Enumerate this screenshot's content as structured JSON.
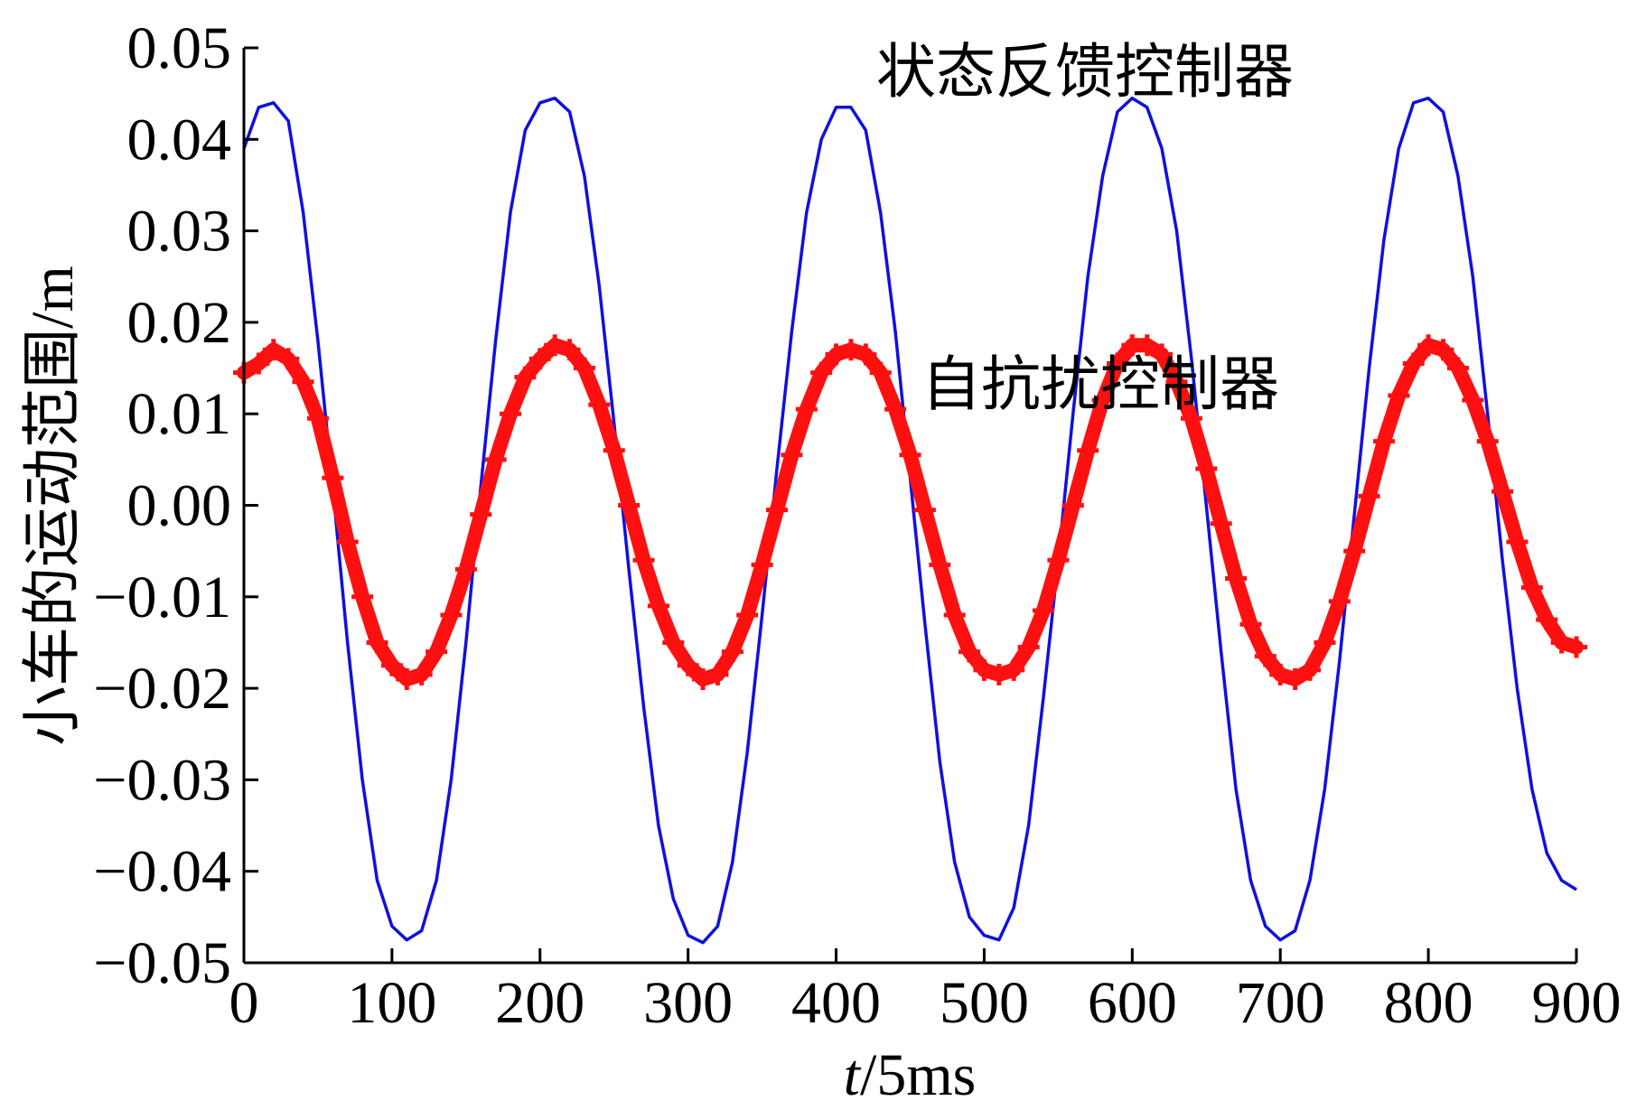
{
  "chart_data": {
    "type": "line",
    "title": "",
    "xlabel": {
      "italic": "t",
      "rest": "/5ms"
    },
    "ylabel": "小车的运动范围/m",
    "xlim": [
      0,
      900
    ],
    "ylim": [
      -0.05,
      0.05
    ],
    "x_ticks": [
      "0",
      "100",
      "200",
      "300",
      "400",
      "500",
      "600",
      "700",
      "800",
      "900"
    ],
    "y_ticks": [
      "0.05",
      "0.04",
      "0.03",
      "0.02",
      "0.01",
      "0.00",
      "−0.01",
      "−0.02",
      "−0.03",
      "−0.04",
      "−0.05"
    ],
    "grid": false,
    "legend": "none",
    "series": [
      {
        "name": "状态反馈控制器",
        "color": "#1010e0",
        "style": "line",
        "x": [
          0,
          10,
          20,
          30,
          40,
          50,
          60,
          70,
          80,
          90,
          100,
          110,
          120,
          130,
          140,
          150,
          160,
          170,
          180,
          190,
          200,
          210,
          220,
          230,
          240,
          250,
          260,
          270,
          280,
          290,
          300,
          310,
          320,
          330,
          340,
          350,
          360,
          370,
          380,
          390,
          400,
          410,
          420,
          430,
          440,
          450,
          460,
          470,
          480,
          490,
          500,
          510,
          520,
          530,
          540,
          550,
          560,
          570,
          580,
          590,
          600,
          610,
          620,
          630,
          640,
          650,
          660,
          670,
          680,
          690,
          700,
          710,
          720,
          730,
          740,
          750,
          760,
          770,
          780,
          790,
          800,
          810,
          820,
          830,
          840,
          850,
          860,
          870,
          880,
          890,
          900
        ],
        "y": [
          0.039,
          0.0435,
          0.044,
          0.042,
          0.032,
          0.018,
          0.002,
          -0.015,
          -0.03,
          -0.041,
          -0.046,
          -0.0475,
          -0.0465,
          -0.041,
          -0.03,
          -0.015,
          0.002,
          0.018,
          0.032,
          0.041,
          0.044,
          0.0445,
          0.043,
          0.036,
          0.024,
          0.009,
          -0.007,
          -0.022,
          -0.035,
          -0.043,
          -0.047,
          -0.0478,
          -0.046,
          -0.039,
          -0.027,
          -0.012,
          0.004,
          0.019,
          0.032,
          0.04,
          0.0435,
          0.0435,
          0.041,
          0.032,
          0.019,
          0.003,
          -0.013,
          -0.028,
          -0.039,
          -0.045,
          -0.047,
          -0.0475,
          -0.044,
          -0.035,
          -0.021,
          -0.006,
          0.01,
          0.025,
          0.036,
          0.043,
          0.0445,
          0.0435,
          0.039,
          0.03,
          0.016,
          0.0,
          -0.016,
          -0.031,
          -0.041,
          -0.046,
          -0.0475,
          -0.0465,
          -0.041,
          -0.031,
          -0.017,
          -0.001,
          0.015,
          0.029,
          0.039,
          0.044,
          0.0445,
          0.043,
          0.036,
          0.025,
          0.01,
          -0.006,
          -0.02,
          -0.031,
          -0.038,
          -0.041,
          -0.042
        ]
      },
      {
        "name": "自抗扰控制器",
        "color": "#ff1010",
        "style": "dense-markers",
        "x": [
          0,
          10,
          20,
          30,
          40,
          50,
          60,
          70,
          80,
          90,
          100,
          110,
          120,
          130,
          140,
          150,
          160,
          170,
          180,
          190,
          200,
          210,
          220,
          230,
          240,
          250,
          260,
          270,
          280,
          290,
          300,
          310,
          320,
          330,
          340,
          350,
          360,
          370,
          380,
          390,
          400,
          410,
          420,
          430,
          440,
          450,
          460,
          470,
          480,
          490,
          500,
          510,
          520,
          530,
          540,
          550,
          560,
          570,
          580,
          590,
          600,
          610,
          620,
          630,
          640,
          650,
          660,
          670,
          680,
          690,
          700,
          710,
          720,
          730,
          740,
          750,
          760,
          770,
          780,
          790,
          800,
          810,
          820,
          830,
          840,
          850,
          860,
          870,
          880,
          890,
          900
        ],
        "y": [
          0.0145,
          0.0155,
          0.017,
          0.016,
          0.0135,
          0.0095,
          0.003,
          -0.004,
          -0.01,
          -0.015,
          -0.0175,
          -0.019,
          -0.0185,
          -0.016,
          -0.012,
          -0.007,
          -0.001,
          0.005,
          0.01,
          0.014,
          0.016,
          0.0175,
          0.017,
          0.015,
          0.011,
          0.006,
          0.0,
          -0.006,
          -0.011,
          -0.015,
          -0.0175,
          -0.019,
          -0.0185,
          -0.016,
          -0.012,
          -0.0065,
          -0.0005,
          0.0055,
          0.0105,
          0.0145,
          0.0165,
          0.017,
          0.0165,
          0.0145,
          0.0105,
          0.0055,
          -0.0005,
          -0.0065,
          -0.012,
          -0.016,
          -0.018,
          -0.0185,
          -0.018,
          -0.0155,
          -0.0115,
          -0.006,
          0.0,
          0.006,
          0.0115,
          0.0155,
          0.0175,
          0.0175,
          0.0165,
          0.0135,
          0.0095,
          0.004,
          -0.002,
          -0.008,
          -0.013,
          -0.0165,
          -0.0185,
          -0.019,
          -0.018,
          -0.015,
          -0.0105,
          -0.005,
          0.001,
          0.007,
          0.012,
          0.0155,
          0.0175,
          0.017,
          0.015,
          0.0115,
          0.007,
          0.0015,
          -0.004,
          -0.009,
          -0.0125,
          -0.015,
          -0.0155
        ]
      }
    ]
  }
}
